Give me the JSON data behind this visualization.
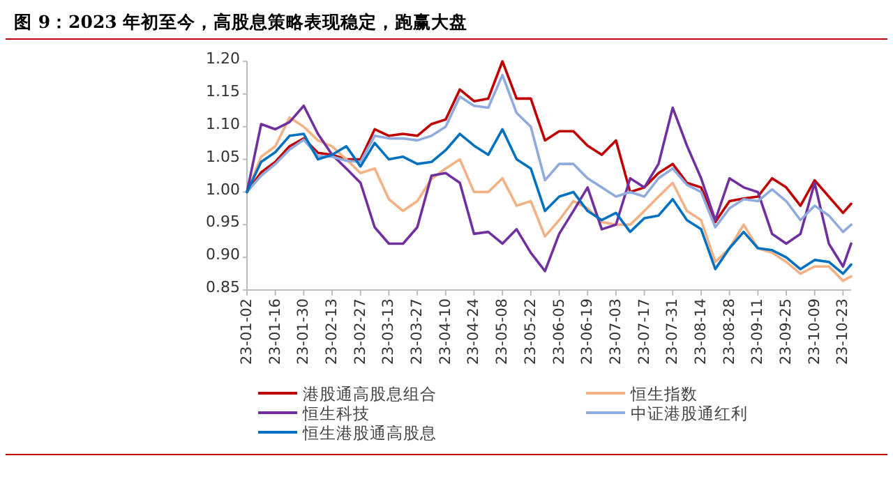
{
  "chart_data": {
    "type": "line",
    "title": "图 9：2023 年初至今，高股息策略表现稳定，跑赢大盘",
    "x": [
      "2023-01-02",
      "2023-01-09",
      "2023-01-16",
      "2023-01-23",
      "2023-01-30",
      "2023-02-06",
      "2023-02-13",
      "2023-02-20",
      "2023-02-27",
      "2023-03-06",
      "2023-03-13",
      "2023-03-20",
      "2023-03-27",
      "2023-04-03",
      "2023-04-10",
      "2023-04-17",
      "2023-04-24",
      "2023-05-01",
      "2023-05-08",
      "2023-05-15",
      "2023-05-22",
      "2023-05-29",
      "2023-06-05",
      "2023-06-12",
      "2023-06-19",
      "2023-06-26",
      "2023-07-03",
      "2023-07-10",
      "2023-07-17",
      "2023-07-24",
      "2023-07-31",
      "2023-08-07",
      "2023-08-14",
      "2023-08-21",
      "2023-08-28",
      "2023-09-04",
      "2023-09-11",
      "2023-09-18",
      "2023-09-25",
      "2023-10-02",
      "2023-10-09",
      "2023-10-16",
      "2023-10-23",
      "2023-10-27"
    ],
    "series": [
      {
        "name": "港股通高股息组合",
        "color": "#c00000",
        "values": [
          1.0,
          1.03,
          1.046,
          1.07,
          1.082,
          1.06,
          1.057,
          1.05,
          1.05,
          1.096,
          1.086,
          1.089,
          1.086,
          1.104,
          1.111,
          1.157,
          1.139,
          1.143,
          1.2,
          1.143,
          1.143,
          1.079,
          1.093,
          1.093,
          1.071,
          1.057,
          1.079,
          1.0,
          1.007,
          1.029,
          1.043,
          1.014,
          1.007,
          0.954,
          0.986,
          0.99,
          0.993,
          1.021,
          1.007,
          0.979,
          1.018,
          0.993,
          0.968,
          0.982
        ]
      },
      {
        "name": "恒生指数",
        "color": "#f4b183",
        "values": [
          1.0,
          1.054,
          1.07,
          1.114,
          1.1,
          1.079,
          1.07,
          1.05,
          1.029,
          1.036,
          0.989,
          0.971,
          0.986,
          1.02,
          1.036,
          1.05,
          1.0,
          1.0,
          1.021,
          0.979,
          0.986,
          0.932,
          0.957,
          0.986,
          0.975,
          0.954,
          0.95,
          0.95,
          0.971,
          0.993,
          1.014,
          0.971,
          0.957,
          0.893,
          0.914,
          0.95,
          0.914,
          0.907,
          0.893,
          0.875,
          0.886,
          0.886,
          0.864,
          0.871
        ]
      },
      {
        "name": "恒生科技",
        "color": "#7030a0",
        "values": [
          1.0,
          1.104,
          1.096,
          1.107,
          1.132,
          1.089,
          1.057,
          1.036,
          1.014,
          0.946,
          0.921,
          0.921,
          0.946,
          1.025,
          1.029,
          1.014,
          0.936,
          0.939,
          0.921,
          0.943,
          0.907,
          0.879,
          0.936,
          0.971,
          1.007,
          0.943,
          0.95,
          1.021,
          1.007,
          1.043,
          1.129,
          1.071,
          1.021,
          0.957,
          1.021,
          1.007,
          1.0,
          0.936,
          0.921,
          0.936,
          1.014,
          0.921,
          0.886,
          0.921
        ]
      },
      {
        "name": "中证港股通红利",
        "color": "#8faadc",
        "values": [
          1.0,
          1.025,
          1.043,
          1.065,
          1.08,
          1.055,
          1.054,
          1.048,
          1.046,
          1.086,
          1.082,
          1.082,
          1.079,
          1.086,
          1.1,
          1.146,
          1.132,
          1.129,
          1.179,
          1.121,
          1.1,
          1.018,
          1.043,
          1.043,
          1.021,
          1.007,
          0.993,
          1.0,
          0.993,
          1.021,
          1.036,
          1.011,
          1.0,
          0.946,
          0.975,
          0.989,
          0.986,
          1.004,
          0.986,
          0.957,
          0.979,
          0.964,
          0.939,
          0.95
        ]
      },
      {
        "name": "恒生港股通高股息",
        "color": "#0070c0",
        "values": [
          1.0,
          1.046,
          1.061,
          1.086,
          1.089,
          1.05,
          1.057,
          1.07,
          1.039,
          1.075,
          1.05,
          1.054,
          1.043,
          1.046,
          1.064,
          1.089,
          1.071,
          1.057,
          1.096,
          1.05,
          1.036,
          0.971,
          0.993,
          1.0,
          0.971,
          0.957,
          0.968,
          0.939,
          0.96,
          0.964,
          0.989,
          0.957,
          0.943,
          0.882,
          0.914,
          0.939,
          0.914,
          0.911,
          0.9,
          0.882,
          0.896,
          0.893,
          0.875,
          0.889
        ]
      }
    ],
    "xlim": [
      "2023-01-02",
      "2023-10-27"
    ],
    "xticks": [
      {
        "value": "2023-01-02",
        "label": "23-01-02"
      },
      {
        "value": "2023-01-16",
        "label": "23-01-16"
      },
      {
        "value": "2023-01-30",
        "label": "23-01-30"
      },
      {
        "value": "2023-02-13",
        "label": "23-02-13"
      },
      {
        "value": "2023-02-27",
        "label": "23-02-27"
      },
      {
        "value": "2023-03-13",
        "label": "23-03-13"
      },
      {
        "value": "2023-03-27",
        "label": "23-03-27"
      },
      {
        "value": "2023-04-10",
        "label": "23-04-10"
      },
      {
        "value": "2023-04-24",
        "label": "23-04-24"
      },
      {
        "value": "2023-05-08",
        "label": "23-05-08"
      },
      {
        "value": "2023-05-22",
        "label": "23-05-22"
      },
      {
        "value": "2023-06-05",
        "label": "23-06-05"
      },
      {
        "value": "2023-06-19",
        "label": "23-06-19"
      },
      {
        "value": "2023-07-03",
        "label": "23-07-03"
      },
      {
        "value": "2023-07-17",
        "label": "23-07-17"
      },
      {
        "value": "2023-07-31",
        "label": "23-07-31"
      },
      {
        "value": "2023-08-14",
        "label": "23-08-14"
      },
      {
        "value": "2023-08-28",
        "label": "23-08-28"
      },
      {
        "value": "2023-09-11",
        "label": "23-09-11"
      },
      {
        "value": "2023-09-25",
        "label": "23-09-25"
      },
      {
        "value": "2023-10-09",
        "label": "23-10-09"
      },
      {
        "value": "2023-10-23",
        "label": "23-10-23"
      }
    ],
    "ylim": [
      0.85,
      1.2
    ],
    "yticks": [
      {
        "value": 0.85,
        "label": "0.85"
      },
      {
        "value": 0.9,
        "label": "0.90"
      },
      {
        "value": 0.95,
        "label": "0.95"
      },
      {
        "value": 1.0,
        "label": "1.00"
      },
      {
        "value": 1.05,
        "label": "1.05"
      },
      {
        "value": 1.1,
        "label": "1.10"
      },
      {
        "value": 1.15,
        "label": "1.15"
      },
      {
        "value": 1.2,
        "label": "1.20"
      }
    ],
    "grid": false,
    "legend": "bottom",
    "marker": "none",
    "line_style": "solid"
  }
}
